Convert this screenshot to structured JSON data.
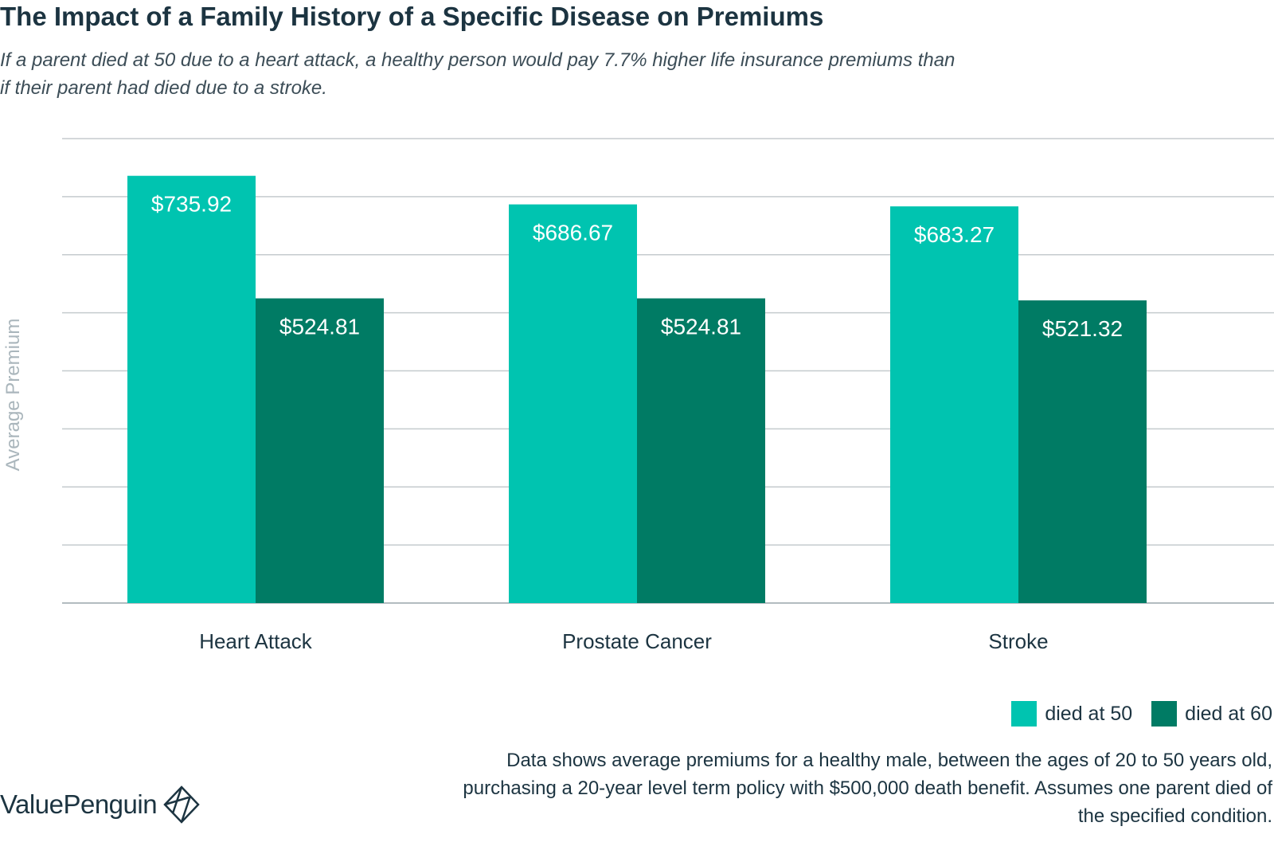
{
  "title": "The Impact of a Family History of a Specific Disease on Premiums",
  "subtitle": "If a parent died at 50 due to a heart attack, a healthy person would pay 7.7% higher life insurance premiums than if their parent had died due to a stroke.",
  "footnote": "Data shows average premiums for a healthy male, between the ages of 20 to 50 years old, purchasing a 20-year level term policy with $500,000 death benefit. Assumes one parent died of the specified condition.",
  "brand": {
    "name": "ValuePenguin",
    "logo_icon": "diamond-logo-icon"
  },
  "chart_data": {
    "type": "bar",
    "title": "The Impact of a Family History of a Specific Disease on Premiums",
    "ylabel": "Average Premium",
    "xlabel": "",
    "categories": [
      "Heart Attack",
      "Prostate Cancer",
      "Stroke"
    ],
    "series": [
      {
        "name": "died at 50",
        "color": "#00c4b0",
        "values": [
          735.92,
          686.67,
          683.27
        ],
        "labels": [
          "$735.92",
          "$686.67",
          "$683.27"
        ]
      },
      {
        "name": "died at 60",
        "color": "#007b64",
        "values": [
          524.81,
          524.81,
          521.32
        ],
        "labels": [
          "$524.81",
          "$524.81",
          "$521.32"
        ]
      }
    ],
    "ylim": [
      0,
      800
    ],
    "gridline_count": 9,
    "grid": true,
    "legend_position": "bottom-right",
    "tick_labels_shown": false
  }
}
